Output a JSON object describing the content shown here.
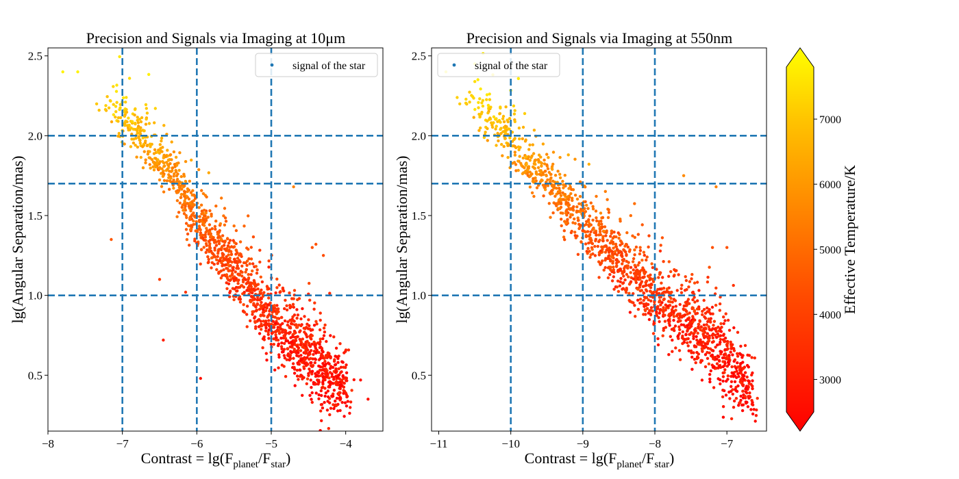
{
  "colors": {
    "guide_line": "#1f77b4",
    "legend_marker": "#1f77b4",
    "colormap": [
      "#ff0000",
      "#ff6600",
      "#ffb000",
      "#ffff00"
    ]
  },
  "chart_data": [
    {
      "type": "scatter",
      "title": "Precision and Signals via Imaging at 10μm",
      "xlabel_main": "Contrast = lg(F",
      "xlabel_sub1": "planet",
      "xlabel_mid": "/F",
      "xlabel_sub2": "star",
      "xlabel_end": ")",
      "ylabel": "lg(Angular Separation/mas)",
      "xlim": [
        -8.0,
        -3.5
      ],
      "ylim": [
        0.15,
        2.55
      ],
      "xticks": [
        -8,
        -7,
        -6,
        -5,
        -4
      ],
      "xtick_labels": [
        "−8",
        "−7",
        "−6",
        "−5",
        "−4"
      ],
      "yticks": [
        0.5,
        1.0,
        1.5,
        2.0,
        2.5
      ],
      "ytick_labels": [
        "0.5",
        "1.0",
        "1.5",
        "2.0",
        "2.5"
      ],
      "vlines": [
        -7,
        -6,
        -5
      ],
      "hlines": [
        1.0,
        1.7,
        2.0
      ],
      "legend_label": "signal of the star",
      "legend_loc": "upper right",
      "series": [
        {
          "name": "signal of the star",
          "x_trend": [
            [
              -7.2,
              2.18
            ],
            [
              -6.5,
              1.85
            ],
            [
              -6.0,
              1.45
            ],
            [
              -5.5,
              1.15
            ],
            [
              -5.0,
              0.85
            ],
            [
              -4.5,
              0.6
            ],
            [
              -4.0,
              0.4
            ]
          ],
          "count": 1500,
          "outliers": [
            [
              -7.8,
              2.4
            ],
            [
              -7.6,
              2.4
            ],
            [
              -7.15,
              1.35
            ],
            [
              -6.5,
              1.1
            ],
            [
              -6.45,
              0.72
            ],
            [
              -5.95,
              0.48
            ],
            [
              -6.15,
              1.02
            ],
            [
              -4.7,
              1.68
            ],
            [
              -3.7,
              0.35
            ],
            [
              -3.8,
              0.47
            ],
            [
              -4.4,
              1.32
            ],
            [
              -4.3,
              1.25
            ],
            [
              -4.45,
              1.3
            ]
          ]
        }
      ]
    },
    {
      "type": "scatter",
      "title": "Precision and Signals via Imaging at 550nm",
      "xlabel_main": "Contrast = lg(F",
      "xlabel_sub1": "planet",
      "xlabel_mid": "/F",
      "xlabel_sub2": "star",
      "xlabel_end": ")",
      "ylabel": "lg(Angular Separation/mas)",
      "xlim": [
        -11.1,
        -6.45
      ],
      "ylim": [
        0.15,
        2.55
      ],
      "xticks": [
        -11,
        -10,
        -9,
        -8,
        -7
      ],
      "xtick_labels": [
        "−11",
        "−10",
        "−9",
        "−8",
        "−7"
      ],
      "yticks": [
        0.5,
        1.0,
        1.5,
        2.0,
        2.5
      ],
      "ytick_labels": [
        "0.5",
        "1.0",
        "1.5",
        "2.0",
        "2.5"
      ],
      "vlines": [
        -10,
        -9,
        -8
      ],
      "hlines": [
        1.0,
        1.7,
        2.0
      ],
      "legend_label": "signal of the star",
      "legend_loc": "upper left",
      "series": [
        {
          "name": "signal of the star",
          "x_trend": [
            [
              -10.6,
              2.22
            ],
            [
              -10.0,
              1.95
            ],
            [
              -9.5,
              1.68
            ],
            [
              -9.0,
              1.45
            ],
            [
              -8.5,
              1.2
            ],
            [
              -8.0,
              1.0
            ],
            [
              -7.5,
              0.8
            ],
            [
              -7.0,
              0.6
            ],
            [
              -6.65,
              0.35
            ]
          ],
          "count": 1500,
          "outliers": [
            [
              -10.9,
              2.4
            ],
            [
              -10.5,
              2.45
            ],
            [
              -7.0,
              1.3
            ],
            [
              -7.2,
              1.3
            ],
            [
              -7.15,
              1.68
            ],
            [
              -7.6,
              1.75
            ]
          ]
        }
      ]
    }
  ],
  "colorbar": {
    "label": "Effective Temperature/K",
    "range": [
      2500,
      7800
    ],
    "ticks": [
      3000,
      4000,
      5000,
      6000,
      7000
    ],
    "tick_labels": [
      "3000",
      "4000",
      "5000",
      "6000",
      "7000"
    ],
    "extend": "both"
  }
}
